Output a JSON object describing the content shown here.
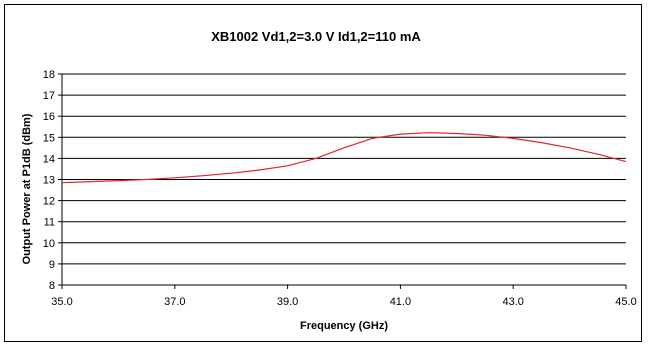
{
  "chart_data": {
    "type": "line",
    "title": "XB1002  Vd1,2=3.0 V  Id1,2=110 mA",
    "xlabel": "Frequency (GHz)",
    "ylabel": "Output Power at P1dB (dBm)",
    "xlim": [
      35.0,
      45.0
    ],
    "ylim": [
      8,
      18
    ],
    "x_ticks": [
      "35.0",
      "37.0",
      "39.0",
      "41.0",
      "43.0",
      "45.0"
    ],
    "y_ticks": [
      "8",
      "9",
      "10",
      "11",
      "12",
      "13",
      "14",
      "15",
      "16",
      "17",
      "18"
    ],
    "grid": "horizontal",
    "line_color": "#e8212b",
    "series": [
      {
        "x": [
          35.0,
          35.5,
          36.0,
          36.5,
          37.0,
          37.5,
          38.0,
          38.5,
          39.0,
          39.5,
          40.0,
          40.5,
          41.0,
          41.5,
          42.0,
          42.5,
          43.0,
          43.5,
          44.0,
          44.5,
          45.0
        ],
        "values": [
          12.85,
          12.9,
          12.95,
          13.0,
          13.08,
          13.18,
          13.3,
          13.45,
          13.65,
          14.0,
          14.5,
          14.95,
          15.15,
          15.22,
          15.18,
          15.1,
          14.95,
          14.75,
          14.5,
          14.2,
          13.85
        ]
      }
    ]
  }
}
